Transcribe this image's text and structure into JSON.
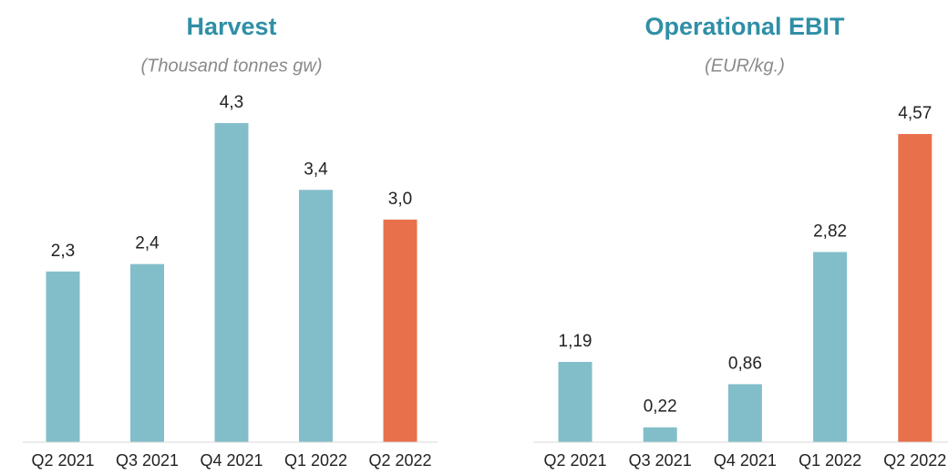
{
  "chart_data": [
    {
      "type": "bar",
      "title": "Harvest",
      "subtitle": "(Thousand tonnes gw)",
      "categories": [
        "Q2 2021",
        "Q3 2021",
        "Q4 2021",
        "Q1 2022",
        "Q2 2022"
      ],
      "values": [
        2.3,
        2.4,
        4.3,
        3.4,
        3.0
      ],
      "value_labels": [
        "2,3",
        "2,4",
        "4,3",
        "3,4",
        "3,0"
      ],
      "colors": [
        "#82bec9",
        "#82bec9",
        "#82bec9",
        "#82bec9",
        "#e8704a"
      ]
    },
    {
      "type": "bar",
      "title": "Operational EBIT",
      "subtitle": "(EUR/kg.)",
      "categories": [
        "Q2 2021",
        "Q3 2021",
        "Q4 2021",
        "Q1 2022",
        "Q2 2022"
      ],
      "values": [
        1.19,
        0.22,
        0.86,
        2.82,
        4.57
      ],
      "value_labels": [
        "1,19",
        "0,22",
        "0,86",
        "2,82",
        "4,57"
      ],
      "colors": [
        "#82bec9",
        "#82bec9",
        "#82bec9",
        "#82bec9",
        "#e8704a"
      ]
    }
  ]
}
